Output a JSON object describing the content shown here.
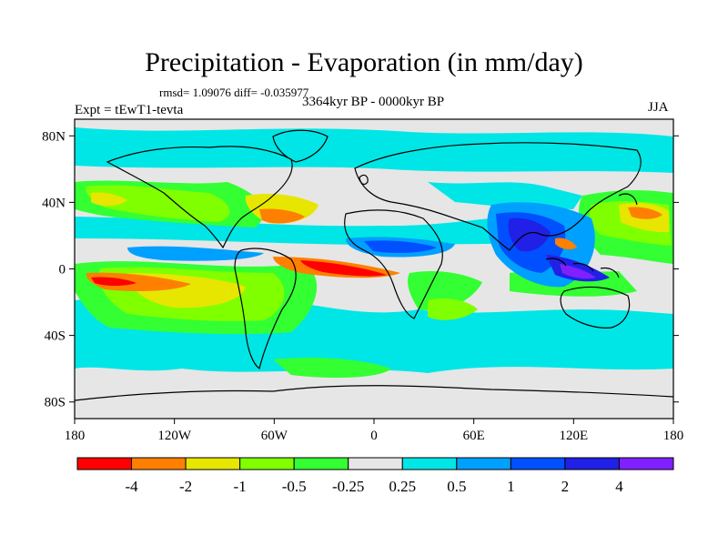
{
  "title": "Precipitation - Evaporation (in mm/day)",
  "stats": "rmsd= 1.09076 diff= -0.035977",
  "period": "3364kyr BP - 0000kyr BP",
  "experiment": "Expt = tEwT1-tevta",
  "season": "JJA",
  "lat_labels": [
    "80N",
    "40N",
    "0",
    "40S",
    "80S"
  ],
  "lon_labels": [
    "180",
    "120W",
    "60W",
    "0",
    "60E",
    "120E",
    "180"
  ],
  "colorbar": {
    "colors": [
      "#ff0000",
      "#ff8000",
      "#e6e600",
      "#80ff00",
      "#33ff33",
      "#e6e6e6",
      "#00e6e6",
      "#00a0ff",
      "#0050ff",
      "#2020e6",
      "#8020ff"
    ],
    "labels": [
      "-4",
      "-2",
      "-1",
      "-0.5",
      "-0.25",
      "0.25",
      "0.5",
      "1",
      "2",
      "4"
    ]
  },
  "palette": {
    "neutral": "#e6e6e6",
    "strong_neg": "#ff0000",
    "neg": "#ff8000",
    "mid_neg": "#e6e600",
    "weak_neg": "#80ff00",
    "slight_neg": "#33ff33",
    "slight_pos": "#00e6e6",
    "weak_pos": "#00a0ff",
    "mid_pos": "#0050ff",
    "pos": "#2020e6",
    "strong_pos": "#8020ff"
  }
}
